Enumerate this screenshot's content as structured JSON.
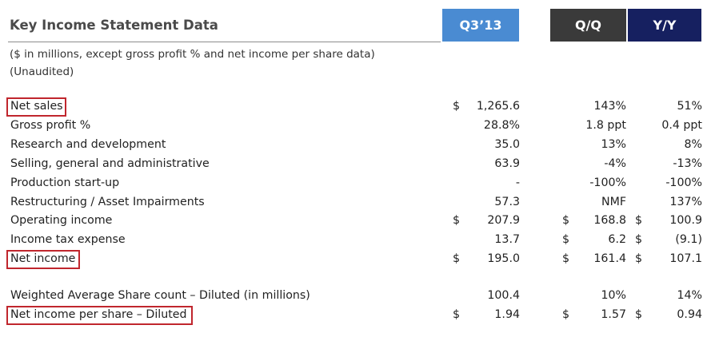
{
  "title": "Key Income Statement Data",
  "headers": {
    "q3": "Q3’13",
    "qq": "Q/Q",
    "yy": "Y/Y"
  },
  "colors": {
    "q3_header": "#4a8bd2",
    "qq_header": "#3a3a3a",
    "yy_header": "#162060",
    "highlight_border": "#c0262d"
  },
  "subtitle": {
    "line1": "($ in millions, except gross profit % and net income per share data)",
    "line2": "(Unaudited)"
  },
  "currency_symbol": "$",
  "rows": [
    {
      "label": "Net sales",
      "q3": "1,265.6",
      "qq": "143%",
      "yy": "51%",
      "q3_dollar": true,
      "qq_dollar": false,
      "yy_dollar": false,
      "highlighted": true
    },
    {
      "label": "Gross profit %",
      "q3": "28.8%",
      "qq": "1.8 ppt",
      "yy": "0.4 ppt",
      "q3_dollar": false,
      "qq_dollar": false,
      "yy_dollar": false,
      "highlighted": false
    },
    {
      "label": "Research and development",
      "q3": "35.0",
      "qq": "13%",
      "yy": "8%",
      "q3_dollar": false,
      "qq_dollar": false,
      "yy_dollar": false,
      "highlighted": false
    },
    {
      "label": "Selling, general and administrative",
      "q3": "63.9",
      "qq": "-4%",
      "yy": "-13%",
      "q3_dollar": false,
      "qq_dollar": false,
      "yy_dollar": false,
      "highlighted": false
    },
    {
      "label": "Production start-up",
      "q3": "-",
      "qq": "-100%",
      "yy": "-100%",
      "q3_dollar": false,
      "qq_dollar": false,
      "yy_dollar": false,
      "highlighted": false
    },
    {
      "label": "Restructuring / Asset Impairments",
      "q3": "57.3",
      "qq": "NMF",
      "yy": "137%",
      "q3_dollar": false,
      "qq_dollar": false,
      "yy_dollar": false,
      "highlighted": false
    },
    {
      "label": "Operating income",
      "q3": "207.9",
      "qq": "168.8",
      "yy": "100.9",
      "q3_dollar": true,
      "qq_dollar": true,
      "yy_dollar": true,
      "highlighted": false
    },
    {
      "label": "Income tax expense",
      "q3": "13.7",
      "qq": "6.2",
      "yy": "(9.1)",
      "q3_dollar": false,
      "qq_dollar": true,
      "yy_dollar": true,
      "highlighted": false
    },
    {
      "label": "Net income",
      "q3": "195.0",
      "qq": "161.4",
      "yy": "107.1",
      "q3_dollar": true,
      "qq_dollar": true,
      "yy_dollar": true,
      "highlighted": true
    },
    {
      "label": "Weighted Average Share count – Diluted (in millions)",
      "q3": "100.4",
      "qq": "10%",
      "yy": "14%",
      "q3_dollar": false,
      "qq_dollar": false,
      "yy_dollar": false,
      "highlighted": false
    },
    {
      "label": "Net income per share – Diluted",
      "q3": "1.94",
      "qq": "1.57",
      "yy": "0.94",
      "q3_dollar": true,
      "qq_dollar": true,
      "yy_dollar": true,
      "highlighted": true
    }
  ]
}
